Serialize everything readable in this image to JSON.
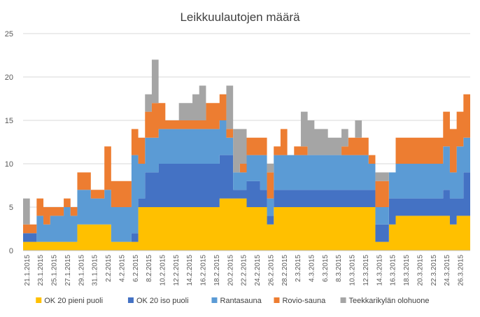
{
  "chart_data": {
    "type": "area",
    "stacked": true,
    "step": true,
    "title": "Leikkuulautojen määrä",
    "ylim": [
      0,
      25
    ],
    "yticks": [
      "0",
      "5",
      "10",
      "15",
      "20",
      "25"
    ],
    "grid": true,
    "legend_position": "bottom",
    "x": [
      "21.1.2015",
      "22.1.2015",
      "23.1.2015",
      "24.1.2015",
      "25.1.2015",
      "26.1.2015",
      "27.1.2015",
      "28.1.2015",
      "29.1.2015",
      "30.1.2015",
      "31.1.2015",
      "1.2.2015",
      "2.2.2015",
      "3.2.2015",
      "4.2.2015",
      "5.2.2015",
      "6.2.2015",
      "7.2.2015",
      "8.2.2015",
      "9.2.2015",
      "10.2.2015",
      "11.2.2015",
      "12.2.2015",
      "13.2.2015",
      "14.2.2015",
      "15.2.2015",
      "16.2.2015",
      "17.2.2015",
      "18.2.2015",
      "19.2.2015",
      "20.2.2015",
      "21.2.2015",
      "22.2.2015",
      "23.2.2015",
      "24.2.2015",
      "25.2.2015",
      "26.2.2015",
      "27.2.2015",
      "28.2.2015",
      "1.3.2015",
      "2.3.2015",
      "3.3.2015",
      "4.3.2015",
      "5.3.2015",
      "6.3.2015",
      "7.3.2015",
      "8.3.2015",
      "9.3.2015",
      "10.3.2015",
      "11.3.2015",
      "12.3.2015",
      "13.3.2015",
      "14.3.2015",
      "15.3.2015",
      "16.3.2015",
      "17.3.2015",
      "18.3.2015",
      "19.3.2015",
      "20.3.2015",
      "21.3.2015",
      "22.3.2015",
      "23.3.2015",
      "24.3.2015",
      "25.3.2015",
      "26.3.2015",
      "27.3.2015"
    ],
    "x_tick_labels": [
      "21.1.2015",
      "23.1.2015",
      "25.1.2015",
      "27.1.2015",
      "29.1.2015",
      "31.1.2015",
      "2.2.2015",
      "4.2.2015",
      "6.2.2015",
      "8.2.2015",
      "10.2.2015",
      "12.2.2015",
      "14.2.2015",
      "16.2.2015",
      "18.2.2015",
      "20.2.2015",
      "22.2.2015",
      "24.2.2015",
      "26.2.2015",
      "28.2.2015",
      "2.3.2015",
      "4.3.2015",
      "6.3.2015",
      "8.3.2015",
      "10.3.2015",
      "12.3.2015",
      "14.3.2015",
      "16.3.2015",
      "18.3.2015",
      "20.3.2015",
      "22.3.2015",
      "24.3.2015",
      "26.3.2015"
    ],
    "series": [
      {
        "name": "OK 20 pieni puoli",
        "color": "#FFC000",
        "values": [
          1,
          1,
          1,
          1,
          1,
          1,
          1,
          1,
          3,
          3,
          3,
          3,
          3,
          1,
          1,
          1,
          1,
          5,
          5,
          5,
          5,
          5,
          5,
          5,
          5,
          5,
          5,
          5,
          5,
          6,
          6,
          6,
          6,
          5,
          5,
          5,
          3,
          5,
          5,
          5,
          5,
          5,
          5,
          5,
          5,
          5,
          5,
          5,
          5,
          5,
          5,
          5,
          1,
          1,
          3,
          4,
          4,
          4,
          4,
          4,
          4,
          4,
          4,
          3,
          4,
          4
        ]
      },
      {
        "name": "OK 20 iso puoli",
        "color": "#4472C4",
        "values": [
          1,
          1,
          0,
          0,
          0,
          0,
          0,
          0,
          0,
          0,
          0,
          0,
          0,
          0,
          0,
          0,
          1,
          1,
          4,
          4,
          5,
          5,
          5,
          5,
          5,
          5,
          5,
          5,
          5,
          5,
          5,
          1,
          1,
          3,
          3,
          2,
          1,
          2,
          2,
          2,
          2,
          2,
          2,
          2,
          2,
          2,
          2,
          2,
          2,
          2,
          2,
          2,
          2,
          2,
          3,
          2,
          2,
          2,
          2,
          2,
          2,
          2,
          3,
          3,
          2,
          5
        ]
      },
      {
        "name": "Rantasauna",
        "color": "#5B9BD5",
        "values": [
          0,
          0,
          3,
          2,
          3,
          3,
          4,
          3,
          4,
          4,
          3,
          3,
          4,
          4,
          4,
          4,
          9,
          4,
          4,
          4,
          4,
          4,
          4,
          4,
          4,
          4,
          4,
          4,
          4,
          4,
          2,
          2,
          2,
          3,
          3,
          4,
          2,
          4,
          4,
          4,
          4,
          4,
          4,
          4,
          4,
          4,
          4,
          4,
          4,
          4,
          4,
          3,
          2,
          2,
          3,
          4,
          4,
          4,
          4,
          4,
          4,
          4,
          5,
          3,
          6,
          4
        ]
      },
      {
        "name": "Rovio-sauna",
        "color": "#ED7D31",
        "values": [
          1,
          1,
          2,
          2,
          1,
          1,
          1,
          1,
          2,
          2,
          1,
          1,
          5,
          3,
          3,
          3,
          3,
          3,
          3,
          4,
          3,
          1,
          1,
          1,
          1,
          1,
          1,
          3,
          3,
          3,
          1,
          0,
          1,
          2,
          2,
          2,
          3,
          1,
          3,
          0,
          1,
          1,
          0,
          0,
          0,
          0,
          0,
          1,
          2,
          2,
          2,
          1,
          3,
          3,
          0,
          3,
          3,
          3,
          3,
          3,
          3,
          3,
          4,
          5,
          4,
          5
        ]
      },
      {
        "name": "Teekkarikylän olohuone",
        "color": "#A5A5A5",
        "values": [
          3,
          0,
          0,
          0,
          0,
          0,
          0,
          0,
          0,
          0,
          0,
          0,
          0,
          0,
          0,
          0,
          0,
          0,
          2,
          5,
          0,
          0,
          0,
          2,
          2,
          3,
          4,
          0,
          0,
          0,
          5,
          5,
          4,
          0,
          0,
          0,
          1,
          0,
          0,
          0,
          0,
          4,
          4,
          3,
          3,
          2,
          2,
          2,
          0,
          2,
          0,
          0,
          1,
          1,
          0,
          0,
          0,
          0,
          0,
          0,
          0,
          0,
          0,
          0,
          0,
          0
        ]
      }
    ]
  }
}
